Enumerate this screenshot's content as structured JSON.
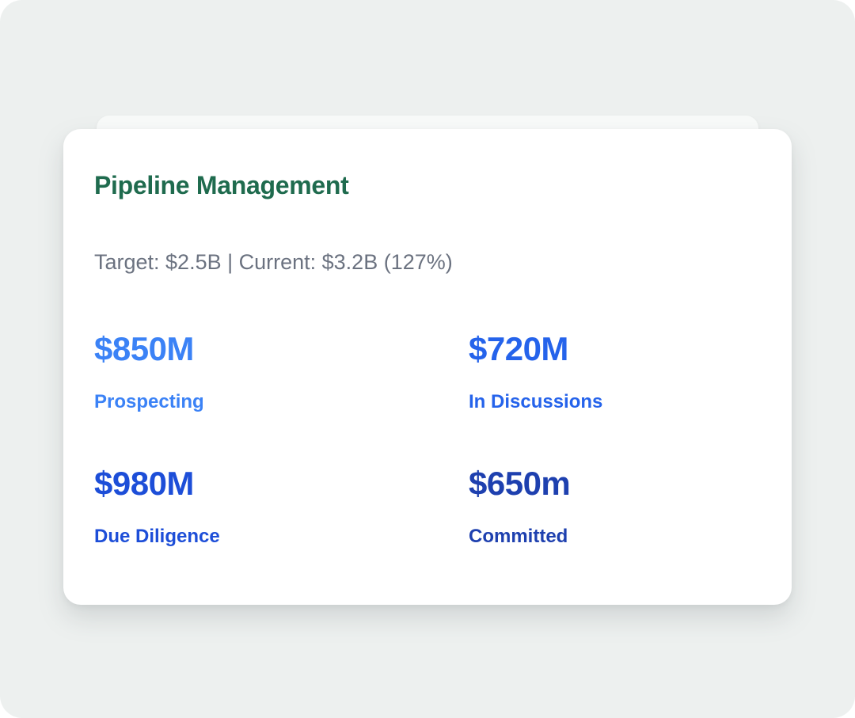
{
  "page": {
    "background_color": "#edf0ef"
  },
  "card": {
    "title": "Pipeline Management",
    "title_color": "#1f6b4e",
    "summary": "Target: $2.5B | Current: $3.2B (127%)",
    "summary_color": "#6b7280",
    "stats": [
      {
        "value": "$850M",
        "label": "Prospecting",
        "color": "#3b82f6"
      },
      {
        "value": "$720M",
        "label": "In Discussions",
        "color": "#2563eb"
      },
      {
        "value": "$980M",
        "label": "Due Diligence",
        "color": "#1d4ed8"
      },
      {
        "value": "$650m",
        "label": "Committed",
        "color": "#1e40af"
      }
    ]
  }
}
